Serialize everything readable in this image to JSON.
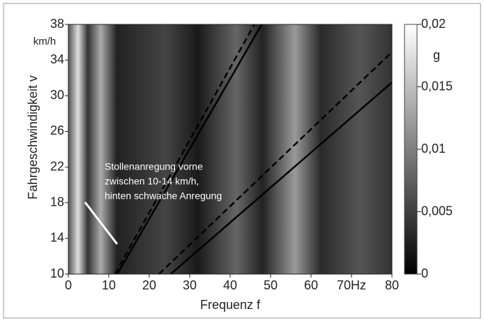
{
  "chart_data": {
    "type": "line",
    "xlabel": "Frequenz f",
    "ylabel": "Fahrgeschwindigkeit v",
    "yunit": "km/h",
    "xlim": [
      0,
      80
    ],
    "xticks": [
      0,
      10,
      20,
      30,
      40,
      50,
      60,
      {
        "value": 70,
        "label": "70Hz"
      },
      80
    ],
    "ylim": [
      10,
      38
    ],
    "yticks": [
      10,
      14,
      18,
      22,
      26,
      30,
      34,
      38
    ],
    "colorbar": {
      "label": "g",
      "lim": [
        0,
        0.02
      ],
      "ticks": [
        0,
        {
          "value": 0.005,
          "label": "0,005"
        },
        {
          "value": 0.01,
          "label": "0,01"
        },
        {
          "value": 0.015,
          "label": "0,015"
        },
        {
          "value": 0.02,
          "label": "0,02"
        }
      ]
    },
    "annotation": [
      "Stollenanregung vorne",
      "zwischen 10-14 km/h,",
      "hinten schwache Anregung"
    ],
    "series": [
      {
        "style": "dashed",
        "color": "#000000",
        "x": [
          11.5,
          46
        ],
        "values": [
          10,
          38
        ]
      },
      {
        "style": "solid",
        "color": "#000000",
        "x": [
          12.1,
          47.8
        ],
        "values": [
          10,
          38
        ]
      },
      {
        "style": "dashed",
        "color": "#000000",
        "x": [
          22.4,
          80
        ],
        "values": [
          10,
          34.9
        ]
      },
      {
        "style": "solid",
        "color": "#000000",
        "x": [
          25.3,
          80
        ],
        "values": [
          10,
          31.5
        ]
      }
    ]
  }
}
